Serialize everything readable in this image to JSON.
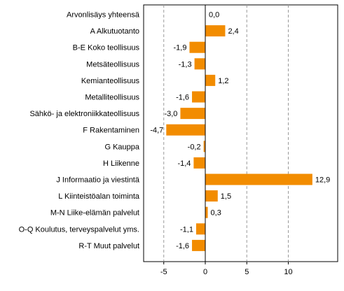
{
  "chart_data": {
    "type": "bar",
    "orientation": "horizontal",
    "categories": [
      "Arvonlisäys yhteensä",
      "A Alkutuotanto",
      "B-E Koko teollisuus",
      "Metsäteollisuus",
      "Kemianteollisuus",
      "Metalliteollisuus",
      "Sähkö- ja elektroniikkateollisuus",
      "F Rakentaminen",
      "G Kauppa",
      "H Liikenne",
      "J Informaatio ja viestintä",
      "L Kiinteistöalan toiminta",
      "M-N Liike-elämän palvelut",
      "O-Q Koulutus, terveyspalvelut yms.",
      "R-T Muut palvelut"
    ],
    "values": [
      0.0,
      2.4,
      -1.9,
      -1.3,
      1.2,
      -1.6,
      -3.0,
      -4.7,
      -0.2,
      -1.4,
      12.9,
      1.5,
      0.3,
      -1.1,
      -1.6
    ],
    "value_labels": [
      "0,0",
      "2,4",
      "-1,9",
      "-1,3",
      "1,2",
      "-1,6",
      "-3,0",
      "-4,7",
      "-0,2",
      "-1,4",
      "12,9",
      "1,5",
      "0,3",
      "-1,1",
      "-1,6"
    ],
    "xticks": [
      -5,
      0,
      5,
      10
    ],
    "xtick_labels": [
      "-5",
      "0",
      "5",
      "10"
    ],
    "xlim": [
      -7.5,
      15.9
    ],
    "grid": "vertical dashed",
    "bar_color": "#f28c00",
    "title": "",
    "xlabel": "",
    "ylabel": ""
  }
}
